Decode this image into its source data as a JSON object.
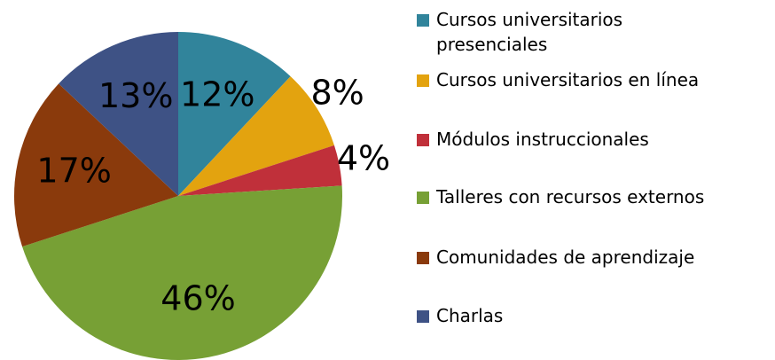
{
  "chart_data": {
    "type": "pie",
    "categories": [
      "Cursos universitarios presenciales",
      "Cursos universitarios en línea",
      "Módulos instruccionales",
      "Talleres con recursos externos",
      "Comunidades de aprendizaje",
      "Charlas"
    ],
    "values": [
      12,
      8,
      4,
      46,
      17,
      13
    ],
    "value_labels": [
      "12%",
      "8%",
      "4%",
      "46%",
      "17%",
      "13%"
    ],
    "colors": [
      "#31849b",
      "#e3a30f",
      "#c0303a",
      "#77a035",
      "#8a3a0c",
      "#3e5285"
    ],
    "legend": "right"
  }
}
